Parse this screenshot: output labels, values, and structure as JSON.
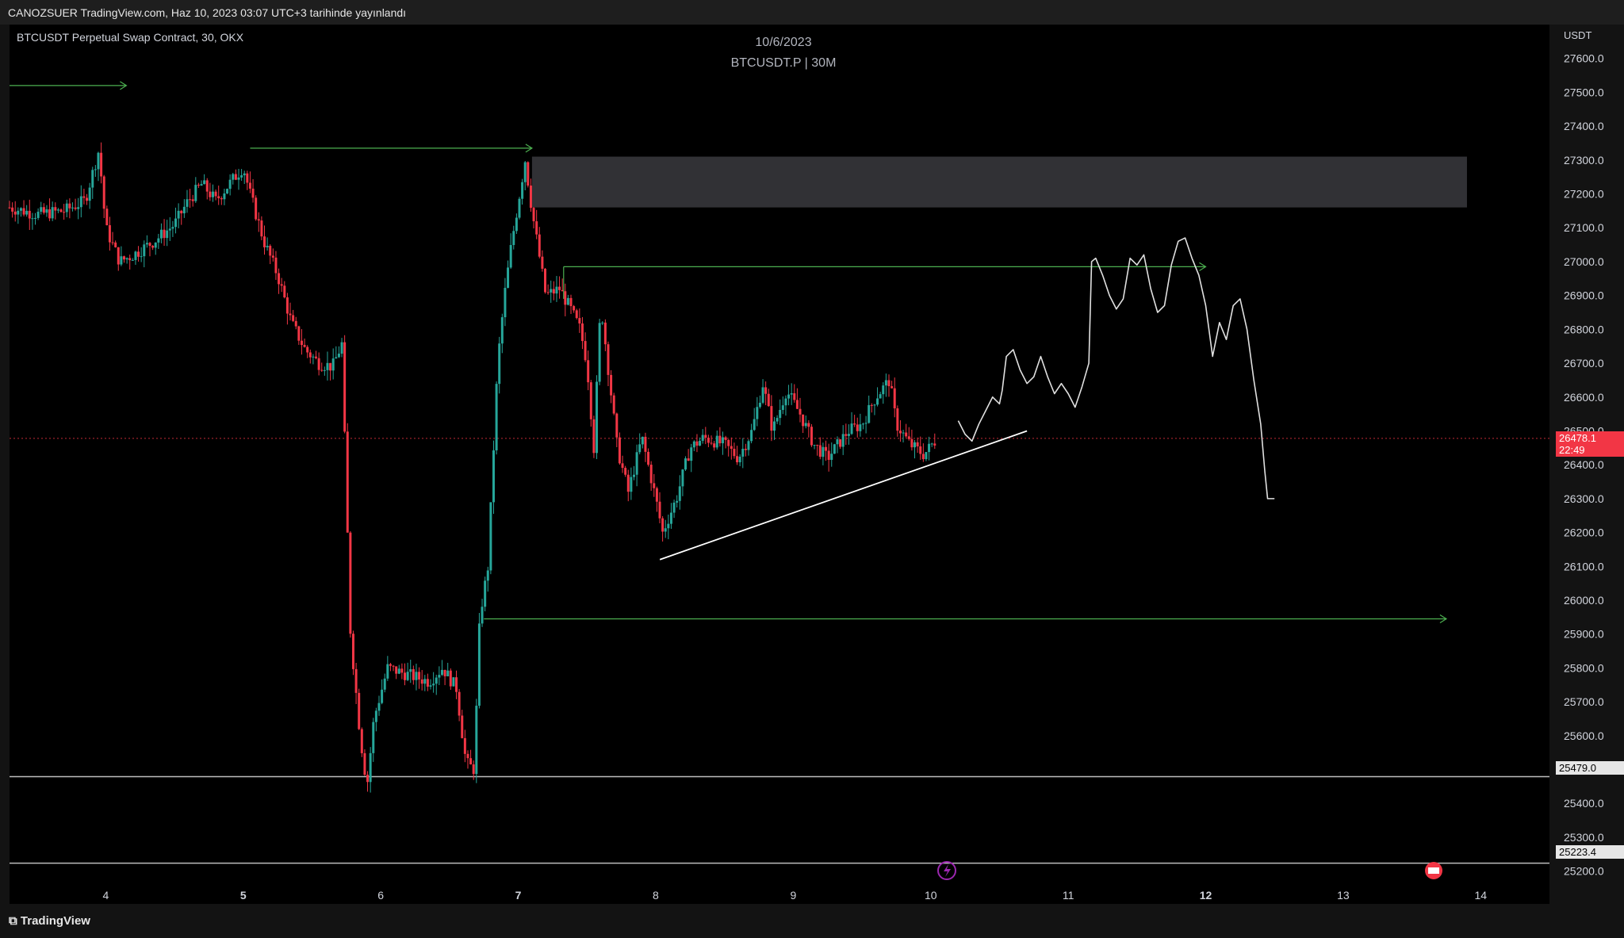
{
  "header": {
    "publish_line": "CANOZSUER TradingView.com, Haz 10, 2023 03:07 UTC+3 tarihinde yayınlandı"
  },
  "chart_header": {
    "symbol_line": "BTCUSDT Perpetual Swap Contract, 30, OKX",
    "date": "10/6/2023",
    "symbol_interval": "BTCUSDT.P | 30M"
  },
  "currency": "USDT",
  "last_price": {
    "value": "26478.1",
    "countdown": "22:49",
    "color": "#f23645"
  },
  "levels": [
    {
      "name": "support-1",
      "label": "25479.0",
      "price": 25479.0
    },
    {
      "name": "support-2",
      "label": "25223.4",
      "price": 25223.4
    }
  ],
  "footer": {
    "logo_text": "TradingView"
  },
  "colors": {
    "up": "#26a69a",
    "down": "#f23645",
    "green_line": "#4caf50",
    "zone": "#3a3a3e"
  },
  "chart_data": {
    "type": "candlestick",
    "yaxis": {
      "min": 25150,
      "max": 27700,
      "ticks": [
        27600,
        27500,
        27400,
        27300,
        27200,
        27100,
        27000,
        26900,
        26800,
        26700,
        26600,
        26500,
        26400,
        26300,
        26200,
        26100,
        26000,
        25900,
        25800,
        25700,
        25600,
        25500,
        25400,
        25300,
        25200
      ],
      "tick_labels": [
        "27600.0",
        "27500.0",
        "27400.0",
        "27300.0",
        "27200.0",
        "27100.0",
        "27000.0",
        "26900.0",
        "26800.0",
        "26700.0",
        "26600.0",
        "26500.0",
        "26400.0",
        "26300.0",
        "26200.0",
        "26100.0",
        "26000.0",
        "25900.0",
        "25800.0",
        "25700.0",
        "25600.0",
        "25500.0",
        "25400.0",
        "25300.0",
        "25200.0"
      ]
    },
    "xaxis": {
      "min": 3.3,
      "max": 14.5,
      "ticks": [
        4,
        5,
        6,
        7,
        8,
        9,
        10,
        11,
        12,
        13,
        14
      ],
      "tick_labels": [
        "4",
        "5",
        "6",
        "7",
        "8",
        "9",
        "10",
        "11",
        "12",
        "13",
        "14"
      ],
      "bold": [
        "5",
        "7",
        "12"
      ]
    },
    "anchors": [
      [
        3.3,
        27160
      ],
      [
        3.5,
        27140
      ],
      [
        3.7,
        27150
      ],
      [
        3.85,
        27180
      ],
      [
        3.95,
        27330
      ],
      [
        4.0,
        27100
      ],
      [
        4.1,
        27000
      ],
      [
        4.2,
        27020
      ],
      [
        4.35,
        27060
      ],
      [
        4.5,
        27110
      ],
      [
        4.6,
        27180
      ],
      [
        4.7,
        27230
      ],
      [
        4.8,
        27180
      ],
      [
        4.9,
        27230
      ],
      [
        5.0,
        27280
      ],
      [
        5.05,
        27200
      ],
      [
        5.15,
        27060
      ],
      [
        5.25,
        26960
      ],
      [
        5.35,
        26820
      ],
      [
        5.45,
        26740
      ],
      [
        5.55,
        26700
      ],
      [
        5.65,
        26690
      ],
      [
        5.72,
        26760
      ],
      [
        5.74,
        26440
      ],
      [
        5.78,
        25900
      ],
      [
        5.85,
        25600
      ],
      [
        5.9,
        25450
      ],
      [
        5.95,
        25650
      ],
      [
        6.05,
        25800
      ],
      [
        6.2,
        25780
      ],
      [
        6.35,
        25760
      ],
      [
        6.45,
        25800
      ],
      [
        6.55,
        25740
      ],
      [
        6.62,
        25520
      ],
      [
        6.68,
        25500
      ],
      [
        6.72,
        25950
      ],
      [
        6.78,
        26100
      ],
      [
        6.85,
        26700
      ],
      [
        6.9,
        26900
      ],
      [
        6.95,
        27050
      ],
      [
        7.05,
        27300
      ],
      [
        7.1,
        27150
      ],
      [
        7.2,
        26900
      ],
      [
        7.3,
        26920
      ],
      [
        7.38,
        26860
      ],
      [
        7.45,
        26800
      ],
      [
        7.5,
        26700
      ],
      [
        7.55,
        26450
      ],
      [
        7.6,
        26880
      ],
      [
        7.65,
        26700
      ],
      [
        7.72,
        26450
      ],
      [
        7.8,
        26320
      ],
      [
        7.9,
        26480
      ],
      [
        8.0,
        26300
      ],
      [
        8.05,
        26200
      ],
      [
        8.15,
        26300
      ],
      [
        8.25,
        26450
      ],
      [
        8.35,
        26480
      ],
      [
        8.5,
        26460
      ],
      [
        8.6,
        26420
      ],
      [
        8.7,
        26500
      ],
      [
        8.78,
        26640
      ],
      [
        8.85,
        26500
      ],
      [
        8.95,
        26620
      ],
      [
        9.05,
        26550
      ],
      [
        9.15,
        26460
      ],
      [
        9.25,
        26420
      ],
      [
        9.4,
        26500
      ],
      [
        9.5,
        26520
      ],
      [
        9.6,
        26600
      ],
      [
        9.7,
        26650
      ],
      [
        9.75,
        26520
      ],
      [
        9.85,
        26460
      ],
      [
        9.95,
        26430
      ],
      [
        10.05,
        26480
      ]
    ],
    "annotations": {
      "zone": {
        "x1": 7.1,
        "x2": 13.9,
        "y1": 27310,
        "y2": 27160
      },
      "green_rays": [
        {
          "x1": 3.3,
          "x2": 4.15,
          "y": 27520
        },
        {
          "x1": 5.05,
          "x2": 7.1,
          "y": 27335
        },
        {
          "x1": 7.33,
          "x2": 12.0,
          "y": 26985
        },
        {
          "x1": 6.75,
          "x2": 13.75,
          "y": 25945
        }
      ],
      "vertical_link": {
        "x": 7.33,
        "y1": 26985,
        "y2": 26890
      },
      "trendline": {
        "x1": 8.03,
        "y1": 26120,
        "x2": 10.7,
        "y2": 26500
      },
      "forecast": [
        [
          10.2,
          26530
        ],
        [
          10.25,
          26490
        ],
        [
          10.3,
          26470
        ],
        [
          10.35,
          26520
        ],
        [
          10.4,
          26560
        ],
        [
          10.45,
          26600
        ],
        [
          10.5,
          26580
        ],
        [
          10.52,
          26620
        ],
        [
          10.55,
          26720
        ],
        [
          10.6,
          26740
        ],
        [
          10.65,
          26680
        ],
        [
          10.7,
          26640
        ],
        [
          10.75,
          26660
        ],
        [
          10.8,
          26720
        ],
        [
          10.85,
          26660
        ],
        [
          10.9,
          26610
        ],
        [
          10.95,
          26640
        ],
        [
          11.0,
          26610
        ],
        [
          11.05,
          26570
        ],
        [
          11.1,
          26630
        ],
        [
          11.15,
          26700
        ],
        [
          11.17,
          27000
        ],
        [
          11.2,
          27010
        ],
        [
          11.25,
          26960
        ],
        [
          11.3,
          26900
        ],
        [
          11.35,
          26860
        ],
        [
          11.4,
          26890
        ],
        [
          11.45,
          27010
        ],
        [
          11.5,
          26990
        ],
        [
          11.55,
          27020
        ],
        [
          11.6,
          26920
        ],
        [
          11.65,
          26850
        ],
        [
          11.7,
          26870
        ],
        [
          11.75,
          26990
        ],
        [
          11.8,
          27060
        ],
        [
          11.85,
          27070
        ],
        [
          11.9,
          27010
        ],
        [
          11.95,
          26960
        ],
        [
          12.0,
          26870
        ],
        [
          12.05,
          26720
        ],
        [
          12.1,
          26820
        ],
        [
          12.15,
          26770
        ],
        [
          12.2,
          26870
        ],
        [
          12.25,
          26890
        ],
        [
          12.3,
          26800
        ],
        [
          12.35,
          26650
        ],
        [
          12.4,
          26520
        ],
        [
          12.43,
          26380
        ],
        [
          12.45,
          26300
        ],
        [
          12.5,
          26300
        ]
      ]
    }
  }
}
